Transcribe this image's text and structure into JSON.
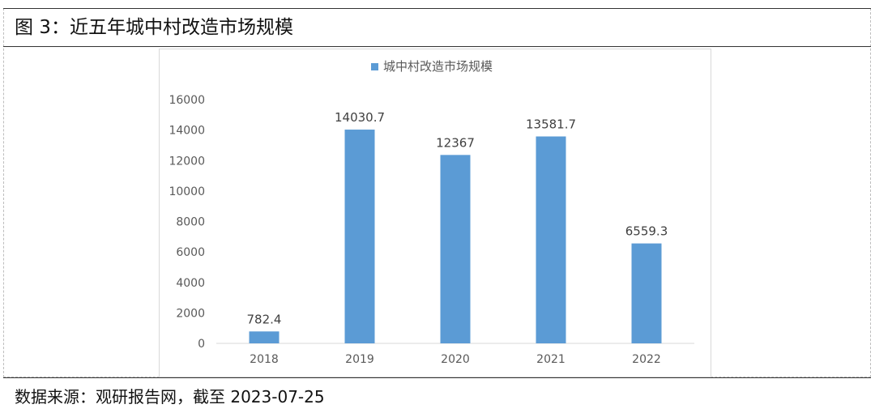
{
  "figure": {
    "title": "图 3：近五年城中村改造市场规模",
    "source": "数据来源：观研报告网，截至 2023-07-25"
  },
  "chart_data": {
    "type": "bar",
    "title": "",
    "xlabel": "",
    "ylabel": "",
    "categories": [
      "2018",
      "2019",
      "2020",
      "2021",
      "2022"
    ],
    "series": [
      {
        "name": "城中村改造市场规模",
        "values": [
          782.4,
          14030.7,
          12367,
          13581.7,
          6559.3
        ],
        "labels": [
          "782.4",
          "14030.7",
          "12367",
          "13581.7",
          "6559.3"
        ],
        "color": "#5b9bd5"
      }
    ],
    "ylim": [
      0,
      16000
    ],
    "yticks": [
      0,
      2000,
      4000,
      6000,
      8000,
      10000,
      12000,
      14000,
      16000
    ],
    "grid": false,
    "legend": "top-center",
    "colors": {
      "bar": "#5b9bd5",
      "axis": "#d9d9d9",
      "tick_text": "#595959"
    }
  }
}
